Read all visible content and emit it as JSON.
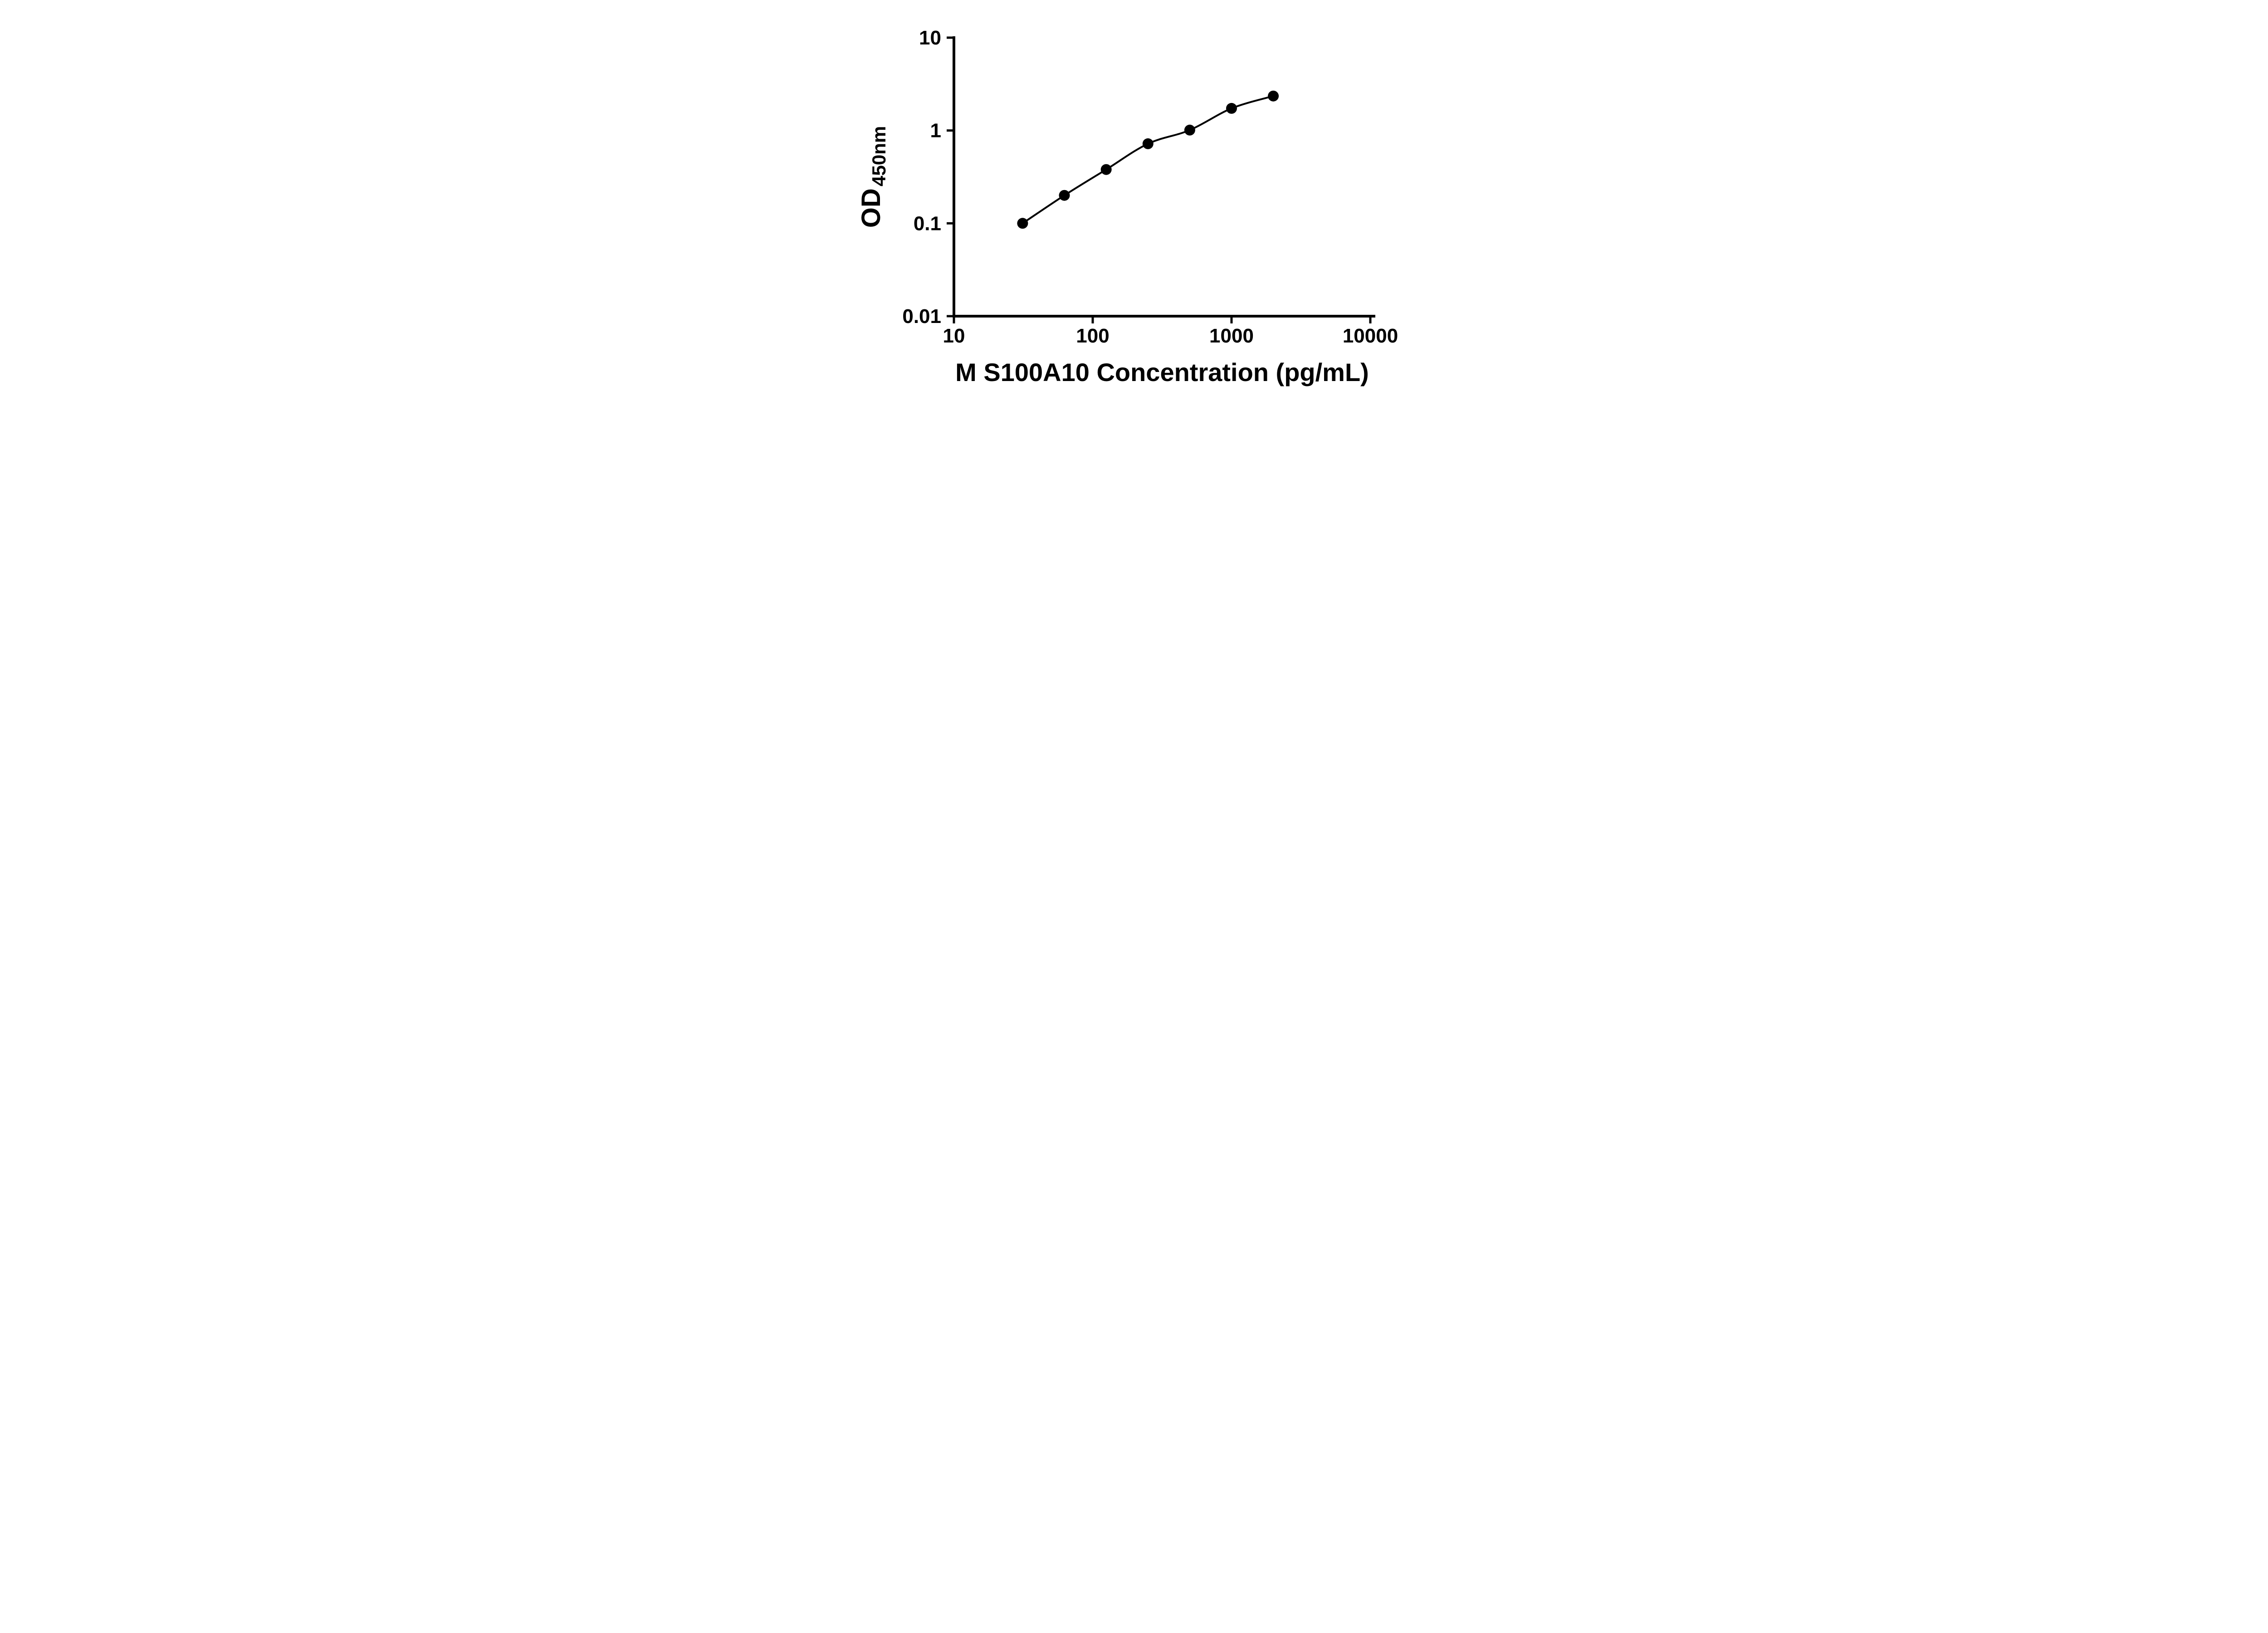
{
  "chart_data": {
    "type": "line",
    "marker": "filled-circle",
    "title": "",
    "xlabel": "M S100A10 Concentration (pg/mL)",
    "ylabel_main": "OD",
    "ylabel_sub": "450nm",
    "x_scale": "log10",
    "y_scale": "log10",
    "xlim": [
      10,
      10000
    ],
    "ylim": [
      0.01,
      10
    ],
    "x_ticks": [
      "10",
      "100",
      "1000",
      "10000"
    ],
    "y_ticks": [
      "0.01",
      "0.1",
      "1",
      "10"
    ],
    "x": [
      31.25,
      62.5,
      125,
      250,
      500,
      1000,
      2000
    ],
    "y": [
      0.1,
      0.2,
      0.38,
      0.72,
      1.01,
      1.73,
      2.35
    ],
    "grid": false,
    "legend": "none",
    "line_color": "#000000",
    "marker_color": "#000000",
    "axis_color": "#000000",
    "background": "#ffffff"
  }
}
